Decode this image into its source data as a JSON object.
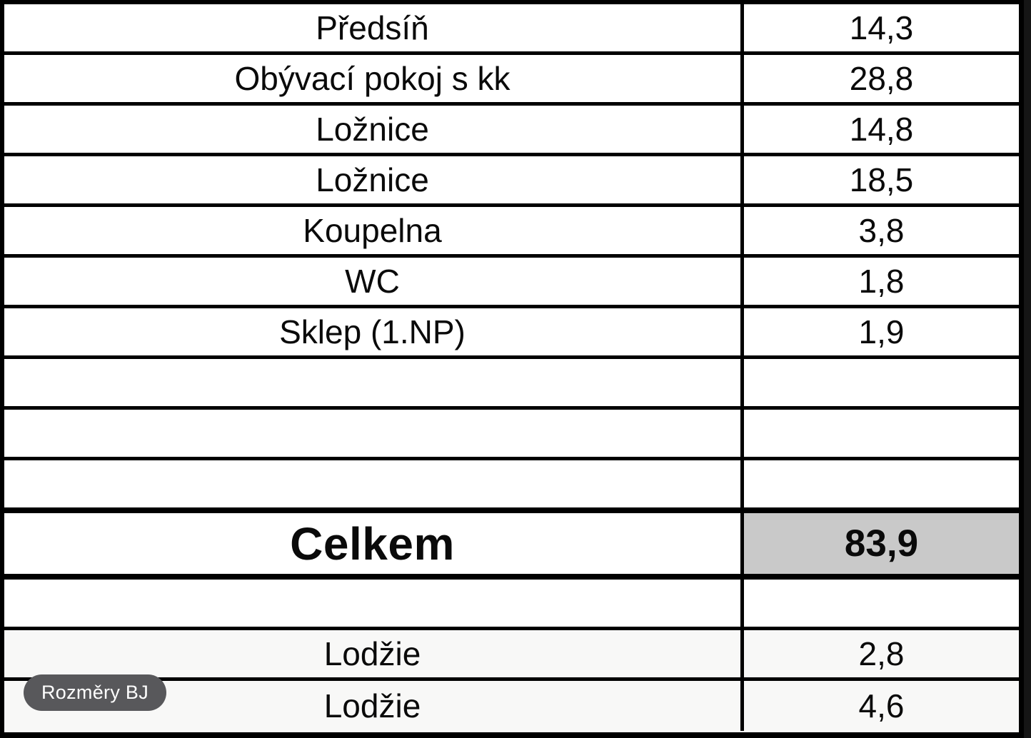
{
  "table": {
    "columns": [
      "room",
      "area_m2"
    ],
    "rows": [
      {
        "label": "Předsíň",
        "value": "14,3"
      },
      {
        "label": "Obývací pokoj s kk",
        "value": "28,8"
      },
      {
        "label": "Ložnice",
        "value": "14,8"
      },
      {
        "label": "Ložnice",
        "value": "18,5"
      },
      {
        "label": "Koupelna",
        "value": "3,8"
      },
      {
        "label": "WC",
        "value": "1,8"
      },
      {
        "label": "Sklep (1.NP)",
        "value": "1,9"
      },
      {
        "label": "",
        "value": ""
      },
      {
        "label": "",
        "value": ""
      },
      {
        "label": "",
        "value": ""
      },
      {
        "label": "Celkem",
        "value": "83,9",
        "type": "total"
      },
      {
        "label": "",
        "value": ""
      },
      {
        "label": "Lodžie",
        "value": "2,8"
      },
      {
        "label": "Lodžie",
        "value": "4,6"
      }
    ]
  },
  "badge": {
    "label": "Rozměry BJ"
  },
  "colors": {
    "border": "#000000",
    "table_bg": "#ffffff",
    "total_value_bg": "#c9c9c9",
    "badge_bg": "#58585b",
    "badge_text": "#ffffff",
    "canvas_bg": "#151515"
  }
}
